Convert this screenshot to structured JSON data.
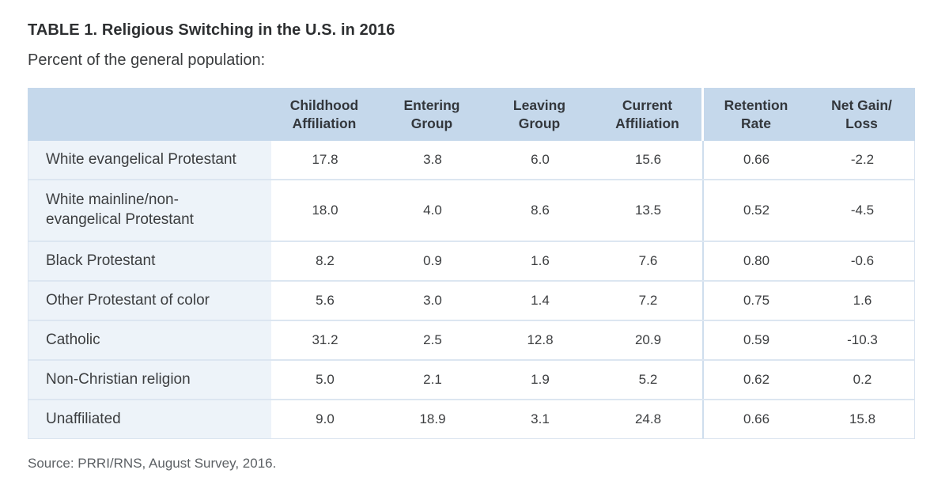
{
  "page": {
    "title": "TABLE 1. Religious Switching in the U.S. in 2016",
    "subtitle": "Percent of the general population:",
    "source": "Source: PRRI/RNS, August Survey, 2016."
  },
  "colors": {
    "header_bg": "#c5d8eb",
    "label_col_bg": "#edf3f9",
    "row_border": "#dce6f1",
    "column_divider": "#cfdeed",
    "text_dark": "#33373c",
    "text_body": "#3c3e40",
    "text_muted": "#5d6165"
  },
  "table": {
    "columns": [
      "Childhood\nAffiliation",
      "Entering\nGroup",
      "Leaving\nGroup",
      "Current\nAffiliation",
      "Retention\nRate",
      "Net Gain/\nLoss"
    ],
    "rows": [
      {
        "label": "White evangelical Protestant",
        "values": [
          "17.8",
          "3.8",
          "6.0",
          "15.6",
          "0.66",
          "-2.2"
        ]
      },
      {
        "label": "White mainline/non-\nevangelical Protestant",
        "values": [
          "18.0",
          "4.0",
          "8.6",
          "13.5",
          "0.52",
          "-4.5"
        ]
      },
      {
        "label": "Black Protestant",
        "values": [
          "8.2",
          "0.9",
          "1.6",
          "7.6",
          "0.80",
          "-0.6"
        ]
      },
      {
        "label": "Other Protestant of color",
        "values": [
          "5.6",
          "3.0",
          "1.4",
          "7.2",
          "0.75",
          "1.6"
        ]
      },
      {
        "label": "Catholic",
        "values": [
          "31.2",
          "2.5",
          "12.8",
          "20.9",
          "0.59",
          "-10.3"
        ]
      },
      {
        "label": "Non-Christian religion",
        "values": [
          "5.0",
          "2.1",
          "1.9",
          "5.2",
          "0.62",
          "0.2"
        ]
      },
      {
        "label": "Unaffiliated",
        "values": [
          "9.0",
          "18.9",
          "3.1",
          "24.8",
          "0.66",
          "15.8"
        ]
      }
    ]
  },
  "chart_data": {
    "type": "table",
    "title": "TABLE 1. Religious Switching in the U.S. in 2016",
    "subtitle": "Percent of the general population:",
    "columns": [
      "Childhood Affiliation",
      "Entering Group",
      "Leaving Group",
      "Current Affiliation",
      "Retention Rate",
      "Net Gain/Loss"
    ],
    "categories": [
      "White evangelical Protestant",
      "White mainline/non-evangelical Protestant",
      "Black Protestant",
      "Other Protestant of color",
      "Catholic",
      "Non-Christian religion",
      "Unaffiliated"
    ],
    "series": [
      {
        "name": "Childhood Affiliation",
        "values": [
          17.8,
          18.0,
          8.2,
          5.6,
          31.2,
          5.0,
          9.0
        ]
      },
      {
        "name": "Entering Group",
        "values": [
          3.8,
          4.0,
          0.9,
          3.0,
          2.5,
          2.1,
          18.9
        ]
      },
      {
        "name": "Leaving Group",
        "values": [
          6.0,
          8.6,
          1.6,
          1.4,
          12.8,
          1.9,
          3.1
        ]
      },
      {
        "name": "Current Affiliation",
        "values": [
          15.6,
          13.5,
          7.6,
          7.2,
          20.9,
          5.2,
          24.8
        ]
      },
      {
        "name": "Retention Rate",
        "values": [
          0.66,
          0.52,
          0.8,
          0.75,
          0.59,
          0.62,
          0.66
        ]
      },
      {
        "name": "Net Gain/Loss",
        "values": [
          -2.2,
          -4.5,
          -0.6,
          1.6,
          -10.3,
          0.2,
          15.8
        ]
      }
    ],
    "source": "Source: PRRI/RNS, August Survey, 2016."
  }
}
